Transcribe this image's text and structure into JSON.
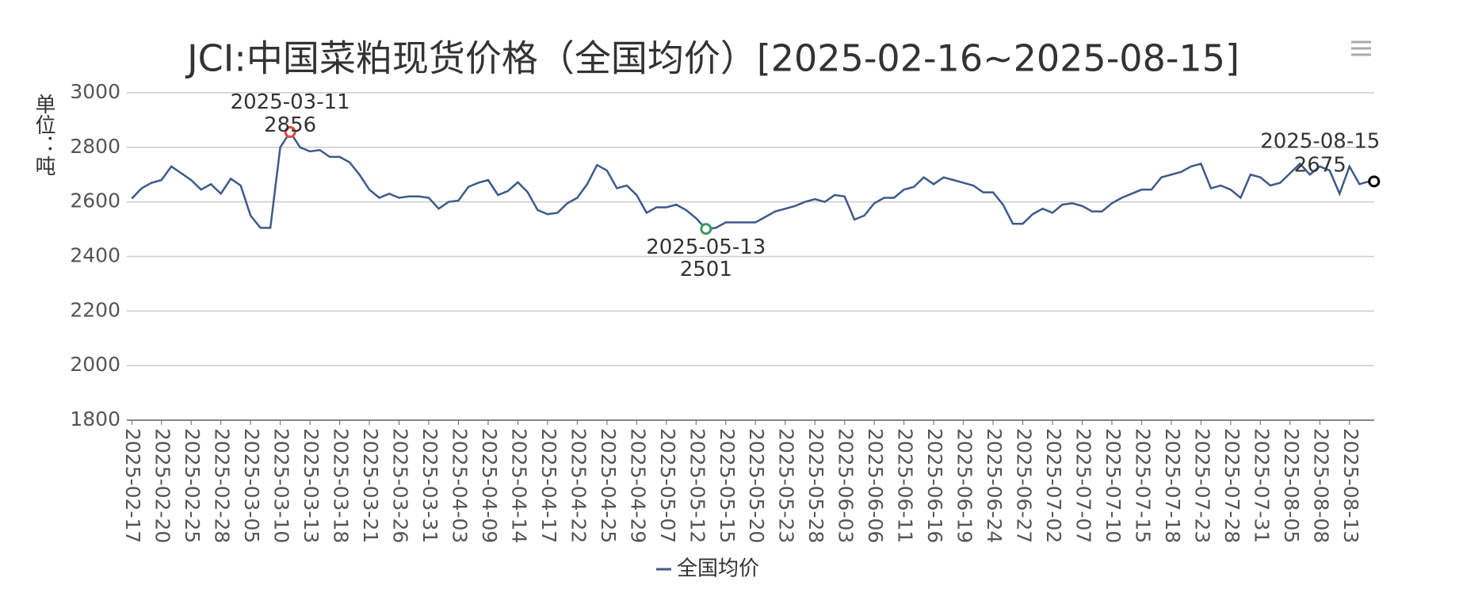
{
  "chart_data": {
    "type": "line",
    "title": "JCI:中国菜粕现货价格（全国均价）[2025-02-16~2025-08-15]",
    "y_label": "单位：吨",
    "categories": [
      "2025-02-17",
      null,
      null,
      "2025-02-20",
      null,
      null,
      "2025-02-25",
      null,
      null,
      "2025-02-28",
      null,
      null,
      "2025-03-05",
      null,
      null,
      "2025-03-10",
      null,
      null,
      "2025-03-13",
      null,
      null,
      "2025-03-18",
      null,
      null,
      "2025-03-21",
      null,
      null,
      "2025-03-26",
      null,
      null,
      "2025-03-31",
      null,
      null,
      "2025-04-03",
      null,
      null,
      "2025-04-09",
      null,
      null,
      "2025-04-14",
      null,
      null,
      "2025-04-17",
      null,
      null,
      "2025-04-22",
      null,
      null,
      "2025-04-25",
      null,
      null,
      "2025-04-29",
      null,
      null,
      "2025-05-07",
      null,
      null,
      "2025-05-12",
      null,
      null,
      "2025-05-15",
      null,
      null,
      "2025-05-20",
      null,
      null,
      "2025-05-23",
      null,
      null,
      "2025-05-28",
      null,
      null,
      "2025-06-03",
      null,
      null,
      "2025-06-06",
      null,
      null,
      "2025-06-11",
      null,
      null,
      "2025-06-16",
      null,
      null,
      "2025-06-19",
      null,
      null,
      "2025-06-24",
      null,
      null,
      "2025-06-27",
      null,
      null,
      "2025-07-02",
      null,
      null,
      "2025-07-07",
      null,
      null,
      "2025-07-10",
      null,
      null,
      "2025-07-15",
      null,
      null,
      "2025-07-18",
      null,
      null,
      "2025-07-23",
      null,
      null,
      "2025-07-28",
      null,
      null,
      "2025-07-31",
      null,
      null,
      "2025-08-05",
      null,
      null,
      "2025-08-08",
      null,
      null,
      "2025-08-13",
      null,
      null
    ],
    "series": [
      {
        "name": "全国均价",
        "color": "#3d5a8a",
        "values": [
          2612,
          2650,
          2670,
          2680,
          2730,
          2705,
          2680,
          2645,
          2665,
          2630,
          2685,
          2660,
          2550,
          2505,
          2505,
          2800,
          2856,
          2800,
          2785,
          2790,
          2765,
          2765,
          2745,
          2700,
          2645,
          2615,
          2630,
          2615,
          2620,
          2620,
          2615,
          2575,
          2600,
          2605,
          2655,
          2670,
          2680,
          2625,
          2640,
          2672,
          2635,
          2570,
          2555,
          2560,
          2595,
          2615,
          2665,
          2735,
          2715,
          2650,
          2660,
          2625,
          2560,
          2580,
          2580,
          2590,
          2570,
          2540,
          2501,
          2505,
          2525,
          2525,
          2525,
          2525,
          2545,
          2565,
          2575,
          2585,
          2600,
          2610,
          2600,
          2625,
          2620,
          2535,
          2550,
          2595,
          2615,
          2615,
          2645,
          2655,
          2690,
          2665,
          2690,
          2680,
          2670,
          2660,
          2635,
          2635,
          2590,
          2520,
          2520,
          2555,
          2575,
          2560,
          2590,
          2595,
          2585,
          2565,
          2565,
          2595,
          2615,
          2630,
          2645,
          2645,
          2690,
          2700,
          2710,
          2730,
          2740,
          2650,
          2660,
          2645,
          2615,
          2700,
          2690,
          2660,
          2670,
          2705,
          2740,
          2700,
          2730,
          2715,
          2630,
          2730,
          2665,
          2675
        ]
      }
    ],
    "mark_points": [
      {
        "type": "max",
        "label": "2025-03-11",
        "value": 2856,
        "color": "#e8463a"
      },
      {
        "type": "min",
        "label": "2025-05-13",
        "value": 2501,
        "color": "#3f9a5e"
      },
      {
        "type": "last",
        "label": "2025-08-15",
        "value": 2675,
        "color": "#000000"
      }
    ],
    "ylim": [
      1800,
      3000
    ],
    "yticks": [
      1800,
      2000,
      2200,
      2400,
      2600,
      2800,
      3000
    ],
    "grid": true
  }
}
